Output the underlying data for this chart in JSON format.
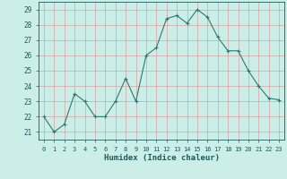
{
  "x": [
    0,
    1,
    2,
    3,
    4,
    5,
    6,
    7,
    8,
    9,
    10,
    11,
    12,
    13,
    14,
    15,
    16,
    17,
    18,
    19,
    20,
    21,
    22,
    23
  ],
  "y": [
    22,
    21,
    21.5,
    23.5,
    23,
    22,
    22,
    23,
    24.5,
    23,
    26,
    26.5,
    28.4,
    28.6,
    28.1,
    29.0,
    28.5,
    27.2,
    26.3,
    26.3,
    25.0,
    24.0,
    23.2,
    23.1
  ],
  "line_color": "#2d7a6e",
  "marker_color": "#2d7a6e",
  "bg_color": "#cceee8",
  "grid_color": "#d9a0a0",
  "text_color": "#1a5a5a",
  "xlabel": "Humidex (Indice chaleur)",
  "xlim": [
    -0.5,
    23.5
  ],
  "ylim": [
    20.5,
    29.5
  ],
  "yticks": [
    21,
    22,
    23,
    24,
    25,
    26,
    27,
    28,
    29
  ],
  "xticks": [
    0,
    1,
    2,
    3,
    4,
    5,
    6,
    7,
    8,
    9,
    10,
    11,
    12,
    13,
    14,
    15,
    16,
    17,
    18,
    19,
    20,
    21,
    22,
    23
  ]
}
